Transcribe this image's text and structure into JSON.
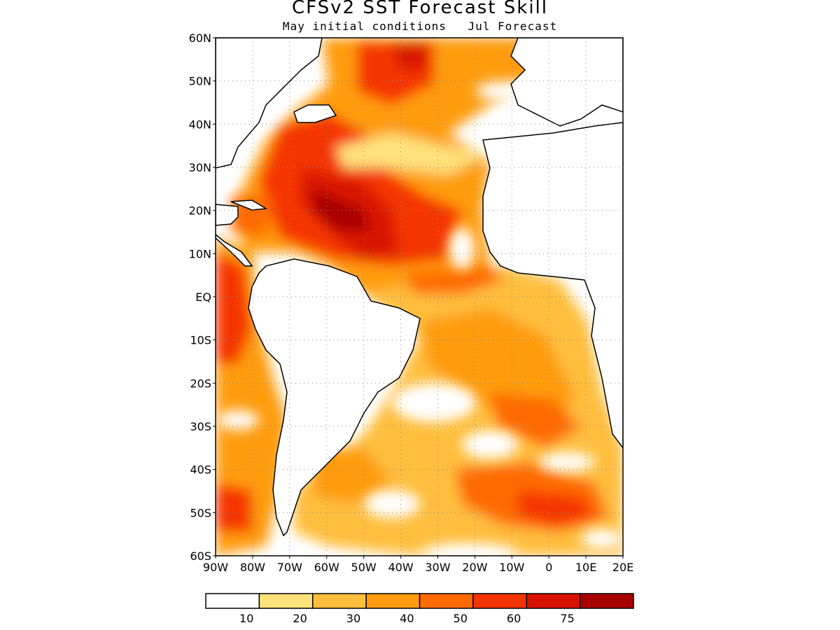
{
  "title": "CFSv2  SST Forecast Skill",
  "subtitle": {
    "init": "May initial conditions",
    "forecast": "Jul Forecast"
  },
  "map": {
    "lon_range": [
      -90,
      20
    ],
    "lat_range": [
      -60,
      60
    ],
    "lat_labels": [
      "60N",
      "50N",
      "40N",
      "30N",
      "20N",
      "10N",
      "EQ",
      "10S",
      "20S",
      "30S",
      "40S",
      "50S",
      "60S"
    ],
    "lon_labels": [
      "90W",
      "80W",
      "70W",
      "60W",
      "50W",
      "40W",
      "30W",
      "20W",
      "10W",
      "0",
      "10E",
      "20E"
    ]
  },
  "colorbar": {
    "colors": [
      "#ffffff",
      "#ffe27a",
      "#ffbe3c",
      "#ff9c10",
      "#ff6a00",
      "#f53500",
      "#d81200",
      "#a80000"
    ],
    "labels": [
      "10",
      "20",
      "30",
      "40",
      "50",
      "60",
      "75"
    ]
  }
}
